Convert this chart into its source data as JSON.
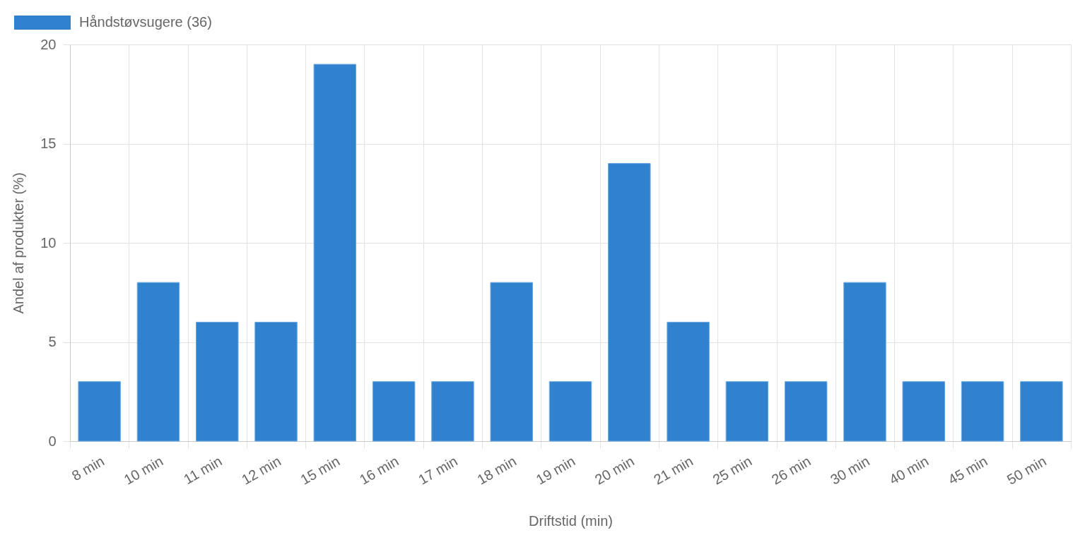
{
  "chart_data": {
    "type": "bar",
    "xlabel": "Driftstid (min)",
    "ylabel": "Andel af produkter (%)",
    "categories": [
      "8 min",
      "10 min",
      "11 min",
      "12 min",
      "15 min",
      "16 min",
      "17 min",
      "18 min",
      "19 min",
      "20 min",
      "21 min",
      "25 min",
      "26 min",
      "30 min",
      "40 min",
      "45 min",
      "50 min"
    ],
    "series": [
      {
        "name": "Håndstøvsugere (36)",
        "color": "#3182ce",
        "values": [
          3,
          8,
          6,
          6,
          19,
          3,
          3,
          8,
          3,
          14,
          6,
          3,
          3,
          8,
          3,
          3,
          3
        ]
      }
    ],
    "ylim": [
      0,
      20
    ],
    "yticks": [
      0,
      5,
      10,
      15,
      20
    ],
    "grid": true,
    "legend": "top left"
  }
}
